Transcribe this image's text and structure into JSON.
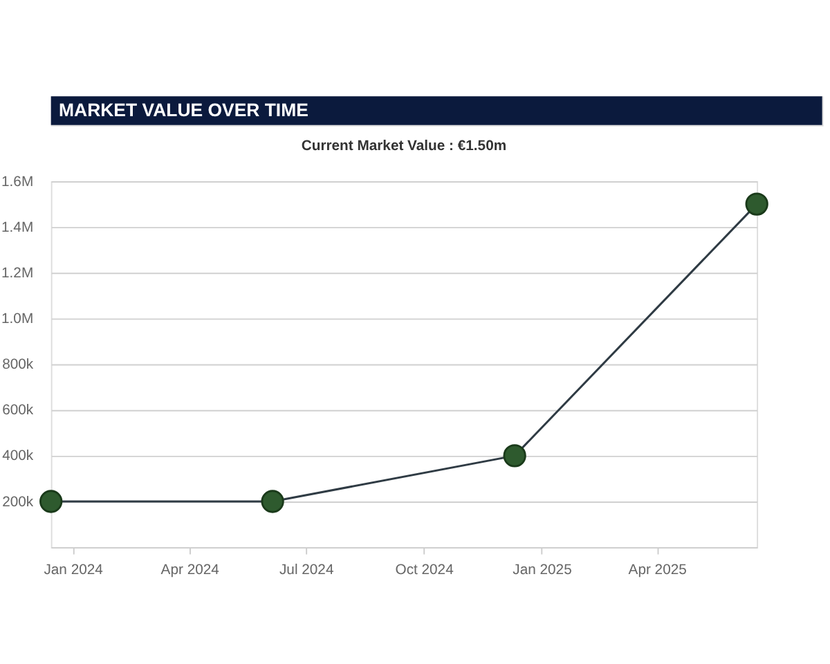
{
  "chart_data": {
    "type": "line",
    "title": "MARKET VALUE OVER TIME",
    "subtitle": "Current Market Value : €1.50m",
    "x": [
      "2023-12-15",
      "2024-06-05",
      "2024-12-11",
      "2025-06-18"
    ],
    "series": [
      {
        "color": "#2f3b44",
        "colors": [
          "#2e5a2e",
          "#2e5a2e",
          "#2e5a2e",
          "#2e5a2e"
        ],
        "values": [
          200000,
          200000,
          400000,
          1500000
        ]
      }
    ],
    "xlim": [
      "2023-12-15",
      "2025-06-18"
    ],
    "xticks": [
      {
        "value": "2024-01-01",
        "label": "Jan 2024"
      },
      {
        "value": "2024-04-01",
        "label": "Apr 2024"
      },
      {
        "value": "2024-07-01",
        "label": "Jul 2024"
      },
      {
        "value": "2024-10-01",
        "label": "Oct 2024"
      },
      {
        "value": "2025-01-01",
        "label": "Jan 2025"
      },
      {
        "value": "2025-04-01",
        "label": "Apr 2025"
      }
    ],
    "ylim": [
      0,
      1600000
    ],
    "yticks": [
      {
        "value": 200000,
        "label": "200k"
      },
      {
        "value": 400000,
        "label": "400k"
      },
      {
        "value": 600000,
        "label": "600k"
      },
      {
        "value": 800000,
        "label": "800k"
      },
      {
        "value": 1000000,
        "label": "1.0M"
      },
      {
        "value": 1200000,
        "label": "1.2M"
      },
      {
        "value": 1400000,
        "label": "1.4M"
      },
      {
        "value": 1600000,
        "label": "1.6M"
      }
    ],
    "grid": "y",
    "legend": false,
    "marker": "circle",
    "line_style": "solid"
  }
}
